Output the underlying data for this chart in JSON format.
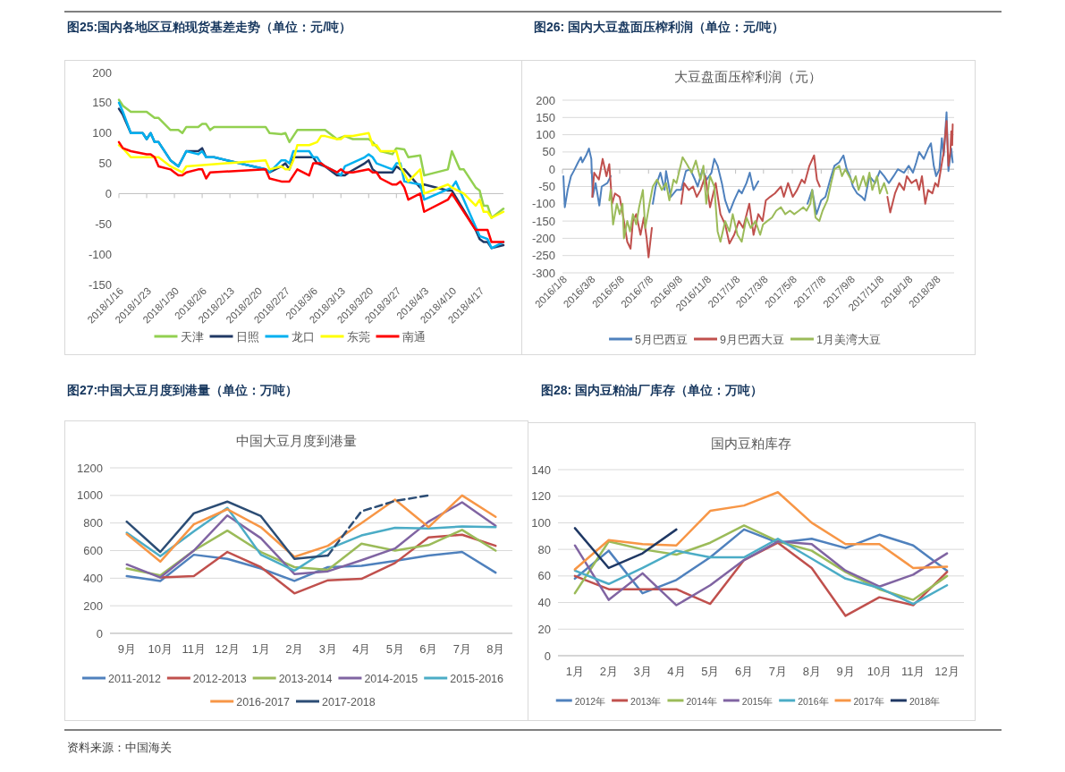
{
  "chart_data": [
    {
      "type": "line",
      "title": "图25:国内各地区豆粕现货基差走势（单位：元/吨）",
      "xlim": [
        "2018-01-16",
        "2018-04-23"
      ],
      "xticks": [
        {
          "value": "2018-01-16",
          "label": "2018/1/16"
        },
        {
          "value": "2018-01-23",
          "label": "2018/1/23"
        },
        {
          "value": "2018-01-30",
          "label": "2018/1/30"
        },
        {
          "value": "2018-02-06",
          "label": "2018/2/6"
        },
        {
          "value": "2018-02-13",
          "label": "2018/2/13"
        },
        {
          "value": "2018-02-20",
          "label": "2018/2/20"
        },
        {
          "value": "2018-02-27",
          "label": "2018/2/27"
        },
        {
          "value": "2018-03-06",
          "label": "2018/3/6"
        },
        {
          "value": "2018-03-13",
          "label": "2018/3/13"
        },
        {
          "value": "2018-03-20",
          "label": "2018/3/20"
        },
        {
          "value": "2018-03-27",
          "label": "2018/3/27"
        },
        {
          "value": "2018-04-03",
          "label": "2018/4/3"
        },
        {
          "value": "2018-04-10",
          "label": "2018/4/10"
        },
        {
          "value": "2018-04-17",
          "label": "2018/4/17"
        }
      ],
      "ylim": [
        -150,
        200
      ],
      "yticks": [
        -150,
        -100,
        -50,
        0,
        50,
        100,
        150,
        200
      ],
      "legend": "bottom",
      "series": [
        {
          "name": "天津",
          "color": "#92d050",
          "x": [
            "2018-01-16",
            "2018-01-17",
            "2018-01-19",
            "2018-01-23",
            "2018-01-25",
            "2018-01-26",
            "2018-01-29",
            "2018-01-31",
            "2018-02-01",
            "2018-02-02",
            "2018-02-05",
            "2018-02-06",
            "2018-02-07",
            "2018-02-08",
            "2018-02-09",
            "2018-02-22",
            "2018-02-23",
            "2018-02-26",
            "2018-02-27",
            "2018-02-28",
            "2018-03-02",
            "2018-03-09",
            "2018-03-12",
            "2018-03-14",
            "2018-03-16",
            "2018-03-20",
            "2018-03-21",
            "2018-03-23",
            "2018-03-26",
            "2018-03-27",
            "2018-03-29",
            "2018-03-30",
            "2018-04-02",
            "2018-04-03",
            "2018-04-09",
            "2018-04-10",
            "2018-04-12",
            "2018-04-13",
            "2018-04-16",
            "2018-04-17",
            "2018-04-18",
            "2018-04-19",
            "2018-04-20",
            "2018-04-23"
          ],
          "values": [
            155,
            145,
            135,
            135,
            125,
            125,
            105,
            105,
            100,
            110,
            110,
            115,
            115,
            105,
            110,
            110,
            100,
            98,
            100,
            85,
            105,
            105,
            90,
            95,
            90,
            90,
            85,
            70,
            65,
            75,
            73,
            60,
            63,
            30,
            40,
            70,
            40,
            40,
            10,
            5,
            -20,
            -20,
            -40,
            -25
          ]
        },
        {
          "name": "日照",
          "color": "#203864",
          "x": [
            "2018-01-16",
            "2018-01-17",
            "2018-01-19",
            "2018-01-22",
            "2018-01-23",
            "2018-01-24",
            "2018-01-25",
            "2018-01-26",
            "2018-01-29",
            "2018-01-31",
            "2018-02-02",
            "2018-02-05",
            "2018-02-06",
            "2018-02-07",
            "2018-02-09",
            "2018-02-22",
            "2018-02-23",
            "2018-02-26",
            "2018-02-27",
            "2018-02-28",
            "2018-03-01",
            "2018-03-06",
            "2018-03-07",
            "2018-03-09",
            "2018-03-12",
            "2018-03-14",
            "2018-03-15",
            "2018-03-19",
            "2018-03-20",
            "2018-03-21",
            "2018-03-22",
            "2018-03-26",
            "2018-03-27",
            "2018-03-28",
            "2018-03-29",
            "2018-04-02",
            "2018-04-03",
            "2018-04-09",
            "2018-04-10",
            "2018-04-16",
            "2018-04-17",
            "2018-04-18",
            "2018-04-19",
            "2018-04-20",
            "2018-04-23"
          ],
          "values": [
            140,
            130,
            100,
            100,
            90,
            100,
            85,
            85,
            55,
            45,
            70,
            70,
            75,
            60,
            60,
            40,
            35,
            45,
            50,
            40,
            60,
            60,
            50,
            45,
            30,
            30,
            35,
            50,
            55,
            40,
            35,
            35,
            45,
            40,
            40,
            10,
            15,
            5,
            5,
            -60,
            -75,
            -80,
            -80,
            -90,
            -85
          ]
        },
        {
          "name": "龙口",
          "color": "#00b0f0",
          "x": [
            "2018-01-16",
            "2018-01-17",
            "2018-01-19",
            "2018-01-22",
            "2018-01-23",
            "2018-01-24",
            "2018-01-25",
            "2018-01-26",
            "2018-01-29",
            "2018-01-31",
            "2018-02-02",
            "2018-02-05",
            "2018-02-06",
            "2018-02-07",
            "2018-02-09",
            "2018-02-22",
            "2018-02-23",
            "2018-02-26",
            "2018-02-27",
            "2018-02-28",
            "2018-03-01",
            "2018-03-05",
            "2018-03-06",
            "2018-03-07",
            "2018-03-08",
            "2018-03-09",
            "2018-03-12",
            "2018-03-13",
            "2018-03-14",
            "2018-03-19",
            "2018-03-20",
            "2018-03-21",
            "2018-03-22",
            "2018-03-26",
            "2018-03-27",
            "2018-03-28",
            "2018-03-29",
            "2018-04-02",
            "2018-04-03",
            "2018-04-10",
            "2018-04-11",
            "2018-04-16",
            "2018-04-17",
            "2018-04-19",
            "2018-04-20",
            "2018-04-23"
          ],
          "values": [
            150,
            135,
            100,
            100,
            90,
            100,
            85,
            85,
            55,
            45,
            70,
            65,
            70,
            60,
            60,
            40,
            35,
            55,
            55,
            50,
            70,
            70,
            60,
            60,
            50,
            45,
            35,
            30,
            45,
            60,
            65,
            60,
            50,
            40,
            50,
            50,
            20,
            15,
            -10,
            10,
            20,
            -55,
            -70,
            -75,
            -90,
            -80
          ]
        },
        {
          "name": "东莞",
          "color": "#ffff00",
          "x": [
            "2018-01-16",
            "2018-01-17",
            "2018-01-19",
            "2018-01-26",
            "2018-01-29",
            "2018-02-01",
            "2018-02-02",
            "2018-02-22",
            "2018-02-23",
            "2018-02-26",
            "2018-02-27",
            "2018-02-28",
            "2018-03-01",
            "2018-03-02",
            "2018-03-05",
            "2018-03-07",
            "2018-03-08",
            "2018-03-09",
            "2018-03-12",
            "2018-03-13",
            "2018-03-14",
            "2018-03-16",
            "2018-03-20",
            "2018-03-21",
            "2018-03-22",
            "2018-03-23",
            "2018-03-27",
            "2018-03-28",
            "2018-03-30",
            "2018-04-02",
            "2018-04-03",
            "2018-04-09",
            "2018-04-10",
            "2018-04-13",
            "2018-04-16",
            "2018-04-17",
            "2018-04-18",
            "2018-04-19",
            "2018-04-20",
            "2018-04-23"
          ],
          "values": [
            80,
            75,
            60,
            60,
            45,
            35,
            45,
            55,
            40,
            45,
            40,
            40,
            55,
            80,
            80,
            85,
            95,
            95,
            90,
            90,
            95,
            95,
            100,
            80,
            80,
            70,
            70,
            45,
            20,
            40,
            0,
            15,
            10,
            0,
            -20,
            -10,
            -30,
            -30,
            -40,
            -30
          ]
        },
        {
          "name": "南通",
          "color": "#ff0000",
          "x": [
            "2018-01-16",
            "2018-01-17",
            "2018-01-19",
            "2018-01-23",
            "2018-01-24",
            "2018-01-25",
            "2018-01-26",
            "2018-01-29",
            "2018-01-30",
            "2018-01-31",
            "2018-02-01",
            "2018-02-02",
            "2018-02-05",
            "2018-02-06",
            "2018-02-07",
            "2018-02-08",
            "2018-02-22",
            "2018-02-23",
            "2018-02-26",
            "2018-02-28",
            "2018-03-02",
            "2018-03-05",
            "2018-03-06",
            "2018-03-08",
            "2018-03-09",
            "2018-03-12",
            "2018-03-13",
            "2018-03-14",
            "2018-03-16",
            "2018-03-20",
            "2018-03-21",
            "2018-03-22",
            "2018-03-23",
            "2018-03-26",
            "2018-03-27",
            "2018-03-28",
            "2018-03-29",
            "2018-03-30",
            "2018-04-02",
            "2018-04-03",
            "2018-04-09",
            "2018-04-10",
            "2018-04-16",
            "2018-04-19",
            "2018-04-20",
            "2018-04-23"
          ],
          "values": [
            85,
            75,
            70,
            65,
            65,
            60,
            45,
            40,
            35,
            30,
            30,
            35,
            40,
            40,
            25,
            35,
            40,
            25,
            20,
            20,
            40,
            30,
            50,
            50,
            45,
            35,
            40,
            35,
            35,
            40,
            35,
            35,
            25,
            15,
            15,
            20,
            10,
            -10,
            0,
            -30,
            -10,
            0,
            -60,
            -60,
            -80,
            -80
          ]
        }
      ]
    },
    {
      "type": "line",
      "title": "图26: 国内大豆盘面压榨利润（单位：元/吨）",
      "subtitle": "大豆盘面压榨利润（元）",
      "xlim": [
        "2016-01-08",
        "2018-04-15"
      ],
      "xticks": [
        {
          "value": "2016-01-08",
          "label": "2016/1/8"
        },
        {
          "value": "2016-03-08",
          "label": "2016/3/8"
        },
        {
          "value": "2016-05-08",
          "label": "2016/5/8"
        },
        {
          "value": "2016-07-08",
          "label": "2016/7/8"
        },
        {
          "value": "2016-09-08",
          "label": "2016/9/8"
        },
        {
          "value": "2016-11-08",
          "label": "2016/11/8"
        },
        {
          "value": "2017-01-08",
          "label": "2017/1/8"
        },
        {
          "value": "2017-03-08",
          "label": "2017/3/8"
        },
        {
          "value": "2017-05-08",
          "label": "2017/5/8"
        },
        {
          "value": "2017-07-08",
          "label": "2017/7/8"
        },
        {
          "value": "2017-09-08",
          "label": "2017/9/8"
        },
        {
          "value": "2017-11-08",
          "label": "2017/11/8"
        },
        {
          "value": "2018-01-08",
          "label": "2018/1/8"
        },
        {
          "value": "2018-03-08",
          "label": "2018/3/8"
        }
      ],
      "ylim": [
        -300,
        200
      ],
      "yticks": [
        -300,
        -250,
        -200,
        -150,
        -100,
        -50,
        0,
        50,
        100,
        150,
        200
      ],
      "grid": "y",
      "legend": "bottom",
      "series": [
        {
          "name": "5月巴西豆",
          "color": "#4f81bd",
          "x": [
            "2016-01-10",
            "2016-01-13",
            "2016-01-19",
            "2016-01-26",
            "2016-02-01",
            "2016-02-10",
            "2016-02-16",
            "2016-02-19",
            "2016-02-27",
            "2016-03-04",
            "2016-03-09",
            "2016-03-12",
            "2016-03-18",
            "2016-03-26",
            "2016-03-31",
            "2016-04-12",
            "2016-04-19",
            "2016-05-20",
            "2016-07-17",
            "2016-07-23",
            "2016-08-02",
            "2016-08-11",
            "2016-08-14",
            "2016-08-24",
            "2016-09-05",
            "2016-09-15",
            "2016-09-25",
            "2016-10-04",
            "2016-10-14",
            "2016-10-20",
            "2016-10-30",
            "2016-11-08",
            "2016-11-18",
            "2016-11-24",
            "2016-12-01",
            "2016-12-10",
            "2016-12-17",
            "2016-12-26",
            "2017-01-05",
            "2017-01-15",
            "2017-01-21",
            "2017-01-31",
            "2017-02-07",
            "2017-02-15",
            "2017-02-25",
            "2017-04-15",
            "2017-06-09",
            "2017-06-19",
            "2017-06-28",
            "2017-07-08",
            "2017-07-17",
            "2017-07-27",
            "2017-08-05",
            "2017-08-15",
            "2017-08-24",
            "2017-08-31",
            "2017-09-07",
            "2017-09-13",
            "2017-09-22",
            "2017-10-02",
            "2017-10-08",
            "2017-10-18",
            "2017-10-24",
            "2017-10-30",
            "2017-11-09",
            "2017-11-18",
            "2017-11-28",
            "2017-12-08",
            "2017-12-17",
            "2017-12-30",
            "2018-01-09",
            "2018-01-18",
            "2018-01-25",
            "2018-01-31",
            "2018-02-10",
            "2018-02-19",
            "2018-02-25",
            "2018-03-03",
            "2018-03-08",
            "2018-03-15",
            "2018-03-20",
            "2018-03-24",
            "2018-03-30",
            "2018-04-03",
            "2018-04-09",
            "2018-04-12"
          ],
          "values": [
            -20,
            -110,
            -60,
            -20,
            -5,
            20,
            35,
            20,
            40,
            60,
            30,
            -80,
            -40,
            -105,
            -50,
            -40,
            -20,
            null,
            -100,
            -50,
            -10,
            -60,
            -5,
            -80,
            -60,
            -60,
            -5,
            0,
            -30,
            -50,
            0,
            -30,
            -10,
            30,
            10,
            -40,
            -90,
            -125,
            -90,
            -60,
            -70,
            -40,
            -10,
            -60,
            -35,
            null,
            -100,
            -60,
            -130,
            -90,
            -80,
            -30,
            10,
            20,
            40,
            0,
            -20,
            -50,
            -70,
            -80,
            -90,
            -20,
            -30,
            -40,
            -5,
            -20,
            -40,
            -20,
            0,
            -10,
            10,
            -10,
            20,
            50,
            30,
            60,
            75,
            10,
            -20,
            0,
            90,
            40,
            165,
            -5,
            60,
            20
          ]
        },
        {
          "name": "9月巴西大豆",
          "color": "#c0504d",
          "x": [
            "2016-03-11",
            "2016-03-15",
            "2016-03-25",
            "2016-04-02",
            "2016-04-10",
            "2016-04-16",
            "2016-04-22",
            "2016-04-28",
            "2016-05-08",
            "2016-05-17",
            "2016-05-24",
            "2016-05-31",
            "2016-06-05",
            "2016-06-12",
            "2016-06-21",
            "2016-06-28",
            "2016-07-04",
            "2016-07-08",
            "2016-07-15",
            "2016-08-15",
            "2016-09-15",
            "2016-09-21",
            "2016-10-01",
            "2016-10-10",
            "2016-10-18",
            "2016-10-26",
            "2016-11-05",
            "2016-11-15",
            "2016-11-27",
            "2016-12-07",
            "2016-12-17",
            "2016-12-26",
            "2017-01-05",
            "2017-01-15",
            "2017-01-24",
            "2017-02-06",
            "2017-02-15",
            "2017-02-25",
            "2017-03-06",
            "2017-03-13",
            "2017-03-22",
            "2017-04-01",
            "2017-04-14",
            "2017-04-20",
            "2017-04-29",
            "2017-05-09",
            "2017-05-18",
            "2017-05-28",
            "2017-06-03",
            "2017-06-13",
            "2017-06-23",
            "2017-06-29",
            "2017-07-05",
            "2017-09-01",
            "2017-11-25",
            "2017-12-01",
            "2017-12-11",
            "2017-12-20",
            "2017-12-30",
            "2018-01-05",
            "2018-01-15",
            "2018-01-25",
            "2018-01-31",
            "2018-02-06",
            "2018-02-13",
            "2018-02-19",
            "2018-02-28",
            "2018-03-06",
            "2018-03-12",
            "2018-03-18",
            "2018-03-24",
            "2018-03-30",
            "2018-04-03",
            "2018-04-07",
            "2018-04-09",
            "2018-04-11",
            "2018-04-12"
          ],
          "values": [
            -80,
            -10,
            -30,
            30,
            -20,
            15,
            -100,
            -70,
            -80,
            -150,
            -210,
            -230,
            -150,
            -130,
            -190,
            -140,
            -200,
            -255,
            -170,
            null,
            -100,
            -40,
            -60,
            -50,
            -80,
            -60,
            -20,
            -110,
            -40,
            -130,
            -160,
            -215,
            -190,
            -150,
            -170,
            -100,
            -190,
            -130,
            -150,
            -90,
            -80,
            -70,
            -50,
            -80,
            -40,
            -80,
            -60,
            -30,
            -40,
            10,
            40,
            -30,
            -50,
            null,
            -80,
            -125,
            -70,
            -40,
            -60,
            -20,
            -40,
            -30,
            -60,
            -20,
            -100,
            -60,
            -70,
            -40,
            -50,
            0,
            50,
            140,
            10,
            50,
            110,
            70,
            130
          ]
        },
        {
          "name": "1月美湾大豆",
          "color": "#9bbb59",
          "x": [
            "2016-04-16",
            "2016-04-19",
            "2016-04-24",
            "2016-05-02",
            "2016-05-08",
            "2016-05-14",
            "2016-05-17",
            "2016-05-24",
            "2016-05-30",
            "2016-06-05",
            "2016-06-12",
            "2016-06-18",
            "2016-06-26",
            "2016-07-01",
            "2016-07-10",
            "2016-07-17",
            "2016-07-26",
            "2016-08-05",
            "2016-08-14",
            "2016-08-21",
            "2016-08-30",
            "2016-09-05",
            "2016-09-18",
            "2016-09-27",
            "2016-10-07",
            "2016-10-16",
            "2016-10-26",
            "2016-11-01",
            "2016-11-07",
            "2016-11-15",
            "2016-11-24",
            "2016-12-01",
            "2016-12-07",
            "2016-12-17",
            "2016-12-26",
            "2017-01-02",
            "2017-01-12",
            "2017-01-21",
            "2017-01-31",
            "2017-02-09",
            "2017-02-19",
            "2017-03-01",
            "2017-03-07",
            "2017-03-16",
            "2017-03-26",
            "2017-04-04",
            "2017-04-14",
            "2017-04-23",
            "2017-05-03",
            "2017-05-12",
            "2017-05-22",
            "2017-05-31",
            "2017-06-07",
            "2017-06-15",
            "2017-06-19",
            "2017-06-26",
            "2017-07-04",
            "2017-07-11",
            "2017-07-21",
            "2017-07-29",
            "2017-08-05",
            "2017-08-15",
            "2017-08-21",
            "2017-08-28",
            "2017-09-05",
            "2017-09-13",
            "2017-09-19",
            "2017-09-25",
            "2017-10-05",
            "2017-10-11",
            "2017-10-18",
            "2017-10-24",
            "2017-11-03",
            "2017-11-09",
            "2017-11-18",
            "2017-11-25"
          ],
          "values": [
            -90,
            -60,
            -160,
            -100,
            -130,
            -100,
            -200,
            -150,
            -180,
            -130,
            -160,
            -110,
            -60,
            -170,
            -100,
            -50,
            -30,
            -60,
            -40,
            -90,
            -30,
            -40,
            35,
            15,
            -10,
            25,
            -30,
            10,
            -100,
            -20,
            -50,
            -180,
            -210,
            -150,
            -180,
            -130,
            -190,
            -210,
            -140,
            -170,
            -150,
            -190,
            -160,
            -150,
            -140,
            -120,
            -110,
            -130,
            -120,
            -130,
            -120,
            -110,
            -120,
            -100,
            -60,
            -140,
            -150,
            -120,
            -90,
            -40,
            0,
            10,
            -20,
            0,
            -20,
            -40,
            -20,
            -60,
            -20,
            -50,
            -10,
            -60,
            -20,
            -70,
            -40,
            -70
          ]
        }
      ]
    },
    {
      "type": "line",
      "title": "图27:中国大豆月度到港量（单位：万吨）",
      "subtitle": "中国大豆月度到港量",
      "categories": [
        "9月",
        "10月",
        "11月",
        "12月",
        "1月",
        "2月",
        "3月",
        "4月",
        "5月",
        "6月",
        "7月",
        "8月"
      ],
      "ylim": [
        0,
        1200
      ],
      "yticks": [
        0,
        200,
        400,
        600,
        800,
        1000,
        1200
      ],
      "grid": "y",
      "legend": "bottom",
      "series": [
        {
          "name": "2011-2012",
          "color": "#4f81bd",
          "values": [
            415,
            380,
            570,
            540,
            470,
            380,
            480,
            490,
            525,
            565,
            590,
            440
          ]
        },
        {
          "name": "2012-2013",
          "color": "#c0504d",
          "values": [
            null,
            405,
            415,
            590,
            480,
            290,
            385,
            395,
            510,
            695,
            715,
            635
          ]
        },
        {
          "name": "2013-2014",
          "color": "#9bbb59",
          "values": [
            470,
            420,
            600,
            745,
            590,
            480,
            460,
            650,
            600,
            640,
            750,
            600
          ]
        },
        {
          "name": "2014-2015",
          "color": "#8064a2",
          "values": [
            500,
            405,
            600,
            855,
            690,
            430,
            450,
            530,
            615,
            810,
            950,
            780
          ]
        },
        {
          "name": "2015-2016",
          "color": "#4bacc6",
          "values": [
            730,
            560,
            740,
            910,
            570,
            455,
            610,
            710,
            765,
            760,
            775,
            770
          ]
        },
        {
          "name": "2016-2017",
          "color": "#f79646",
          "values": [
            720,
            520,
            790,
            900,
            770,
            555,
            635,
            800,
            970,
            770,
            1000,
            845
          ]
        },
        {
          "name": "2017-2018",
          "color": "#2c4d75",
          "values": [
            810,
            590,
            870,
            955,
            850,
            540,
            565,
            null,
            null,
            null,
            null,
            null
          ]
        },
        {
          "color": "#2c4d75",
          "line_style": "dashed",
          "values": [
            null,
            null,
            null,
            null,
            null,
            null,
            565,
            885,
            960,
            1000,
            null,
            null
          ]
        }
      ]
    },
    {
      "type": "line",
      "title": "图28: 国内豆粕油厂库存（单位：万吨）",
      "subtitle": "国内豆粕库存",
      "categories": [
        "1月",
        "2月",
        "3月",
        "4月",
        "5月",
        "6月",
        "7月",
        "8月",
        "9月",
        "10月",
        "11月",
        "12月"
      ],
      "ylim": [
        0,
        140
      ],
      "yticks": [
        0,
        20,
        40,
        60,
        80,
        100,
        120,
        140
      ],
      "grid": "y",
      "legend": "bottom",
      "annotations": [
        "资料来源：中国海关"
      ],
      "series": [
        {
          "name": "2012年",
          "color": "#4f81bd",
          "values": [
            58,
            79,
            47,
            57,
            74,
            95,
            85,
            88,
            81,
            91,
            83,
            64
          ]
        },
        {
          "name": "2013年",
          "color": "#c0504d",
          "values": [
            60,
            50,
            50,
            50,
            39,
            72,
            85,
            66,
            30,
            44,
            38,
            63
          ]
        },
        {
          "name": "2014年",
          "color": "#9bbb59",
          "values": [
            47,
            86,
            80,
            76,
            85,
            98,
            86,
            79,
            63,
            50,
            42,
            60
          ]
        },
        {
          "name": "2015年",
          "color": "#8064a2",
          "values": [
            83,
            42,
            62,
            38,
            53,
            72,
            86,
            84,
            64,
            52,
            61,
            77
          ]
        },
        {
          "name": "2016年",
          "color": "#4bacc6",
          "values": [
            64,
            54,
            66,
            79,
            74,
            74,
            88,
            73,
            58,
            51,
            39,
            53
          ]
        },
        {
          "name": "2017年",
          "color": "#f79646",
          "values": [
            65,
            87,
            84,
            83,
            109,
            113,
            123,
            100,
            84,
            84,
            66,
            67
          ]
        },
        {
          "name": "2018年",
          "color": "#1f3864",
          "values": [
            96,
            66,
            77,
            95,
            null,
            null,
            null,
            null,
            null,
            null,
            null,
            null
          ]
        }
      ]
    }
  ]
}
